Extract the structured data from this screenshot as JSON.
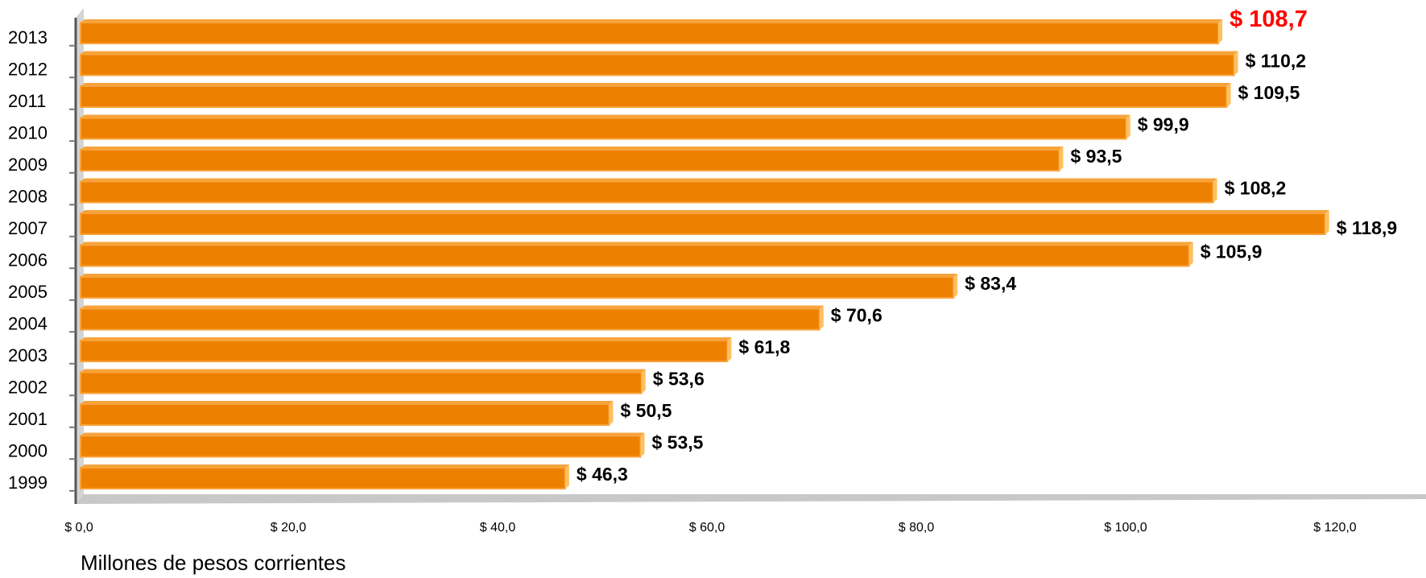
{
  "chart_data": {
    "type": "bar",
    "orientation": "horizontal",
    "categories": [
      "2013",
      "2012",
      "2011",
      "2010",
      "2009",
      "2008",
      "2007",
      "2006",
      "2005",
      "2004",
      "2003",
      "2002",
      "2001",
      "2000",
      "1999"
    ],
    "values": [
      108.7,
      110.2,
      109.5,
      99.9,
      93.5,
      108.2,
      118.9,
      105.9,
      83.4,
      70.6,
      61.8,
      53.6,
      50.5,
      53.5,
      46.3
    ],
    "value_labels": [
      "$ 108,7",
      "$ 110,2",
      "$ 109,5",
      "$ 99,9",
      "$ 93,5",
      "$ 108,2",
      "$ 118,9",
      "$ 105,9",
      "$ 83,4",
      "$ 70,6",
      "$ 61,8",
      "$ 53,6",
      "$ 50,5",
      "$ 53,5",
      "$ 46,3"
    ],
    "highlight_category": "2013",
    "x_ticks": [
      0,
      20,
      40,
      60,
      80,
      100,
      120
    ],
    "x_tick_labels": [
      "$ 0,0",
      "$ 20,0",
      "$ 40,0",
      "$ 60,0",
      "$ 80,0",
      "$ 100,0",
      "$ 120,0"
    ],
    "xlim": [
      0,
      128
    ],
    "xlabel": "Millones de pesos corrientes",
    "ylabel": "",
    "title": "",
    "grid": false,
    "legend": "none",
    "colors": {
      "bar": "#ee8000",
      "bar_edge": "#f7a33c",
      "bar_cap": "#ffc060",
      "wall": "#c8c8c8",
      "highlight_label": "#ff0000",
      "label": "#000000"
    }
  }
}
